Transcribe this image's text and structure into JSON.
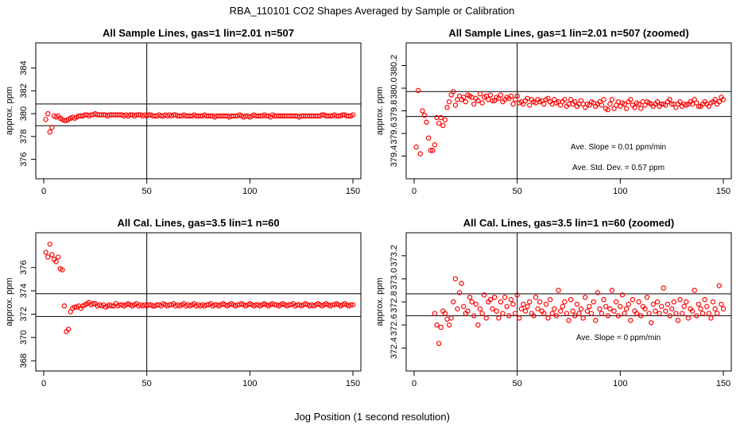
{
  "figure": {
    "title": "RBA_110101  CO2 Shapes Averaged by Sample or Calibration",
    "xlabel": "Jog Position (1 second resolution)"
  },
  "colors": {
    "points": "#ff0000",
    "axes": "#000000",
    "background": "#ffffff"
  },
  "chart_data": [
    {
      "type": "scatter",
      "title": "All Sample Lines, gas=1 lin=2.01 n=507",
      "ylabel": "approx. ppm",
      "xlim": [
        0,
        150
      ],
      "ylim": [
        375,
        385.5
      ],
      "xticks": [
        0,
        50,
        100,
        150
      ],
      "yticks": [
        376,
        378,
        380,
        382,
        384
      ],
      "vline": 50,
      "hlines": [
        378.95,
        380.85
      ],
      "annotations": [],
      "x": [
        1,
        2,
        3,
        4,
        5,
        6,
        7,
        8,
        9,
        10,
        11,
        12,
        13,
        14,
        15,
        16,
        17,
        18,
        19,
        20,
        21,
        22,
        23,
        24,
        25,
        26,
        27,
        28,
        29,
        30,
        31,
        32,
        33,
        34,
        35,
        36,
        37,
        38,
        39,
        40,
        41,
        42,
        43,
        44,
        45,
        46,
        47,
        48,
        49,
        50,
        51,
        52,
        53,
        54,
        55,
        56,
        57,
        58,
        59,
        60,
        61,
        62,
        63,
        64,
        65,
        66,
        67,
        68,
        69,
        70,
        71,
        72,
        73,
        74,
        75,
        76,
        77,
        78,
        79,
        80,
        81,
        82,
        83,
        84,
        85,
        86,
        87,
        88,
        89,
        90,
        91,
        92,
        93,
        94,
        95,
        96,
        97,
        98,
        99,
        100,
        101,
        102,
        103,
        104,
        105,
        106,
        107,
        108,
        109,
        110,
        111,
        112,
        113,
        114,
        115,
        116,
        117,
        118,
        119,
        120,
        121,
        122,
        123,
        124,
        125,
        126,
        127,
        128,
        129,
        130,
        131,
        132,
        133,
        134,
        135,
        136,
        137,
        138,
        139,
        140,
        141,
        142,
        143,
        144,
        145,
        146,
        147,
        148,
        149,
        150
      ],
      "y": [
        379.5,
        380.0,
        378.4,
        378.8,
        379.8,
        379.7,
        379.8,
        379.6,
        379.5,
        379.4,
        379.4,
        379.5,
        379.6,
        379.7,
        379.6,
        379.7,
        379.8,
        379.8,
        379.8,
        379.9,
        379.9,
        379.8,
        379.9,
        379.9,
        380.0,
        379.9,
        379.9,
        379.9,
        379.9,
        379.9,
        379.8,
        379.9,
        379.9,
        379.9,
        379.9,
        379.9,
        379.9,
        379.9,
        379.8,
        379.9,
        379.8,
        379.9,
        379.9,
        379.8,
        379.9,
        379.9,
        379.9,
        379.8,
        379.9,
        379.8,
        379.9,
        379.9,
        379.8,
        379.8,
        379.8,
        379.9,
        379.8,
        379.8,
        379.9,
        379.8,
        379.9,
        379.8,
        379.9,
        379.9,
        379.8,
        379.8,
        379.8,
        379.9,
        379.8,
        379.8,
        379.8,
        379.8,
        379.9,
        379.8,
        379.8,
        379.8,
        379.8,
        379.9,
        379.8,
        379.8,
        379.8,
        379.8,
        379.7,
        379.8,
        379.8,
        379.8,
        379.8,
        379.8,
        379.8,
        379.7,
        379.8,
        379.8,
        379.8,
        379.8,
        379.9,
        379.8,
        379.7,
        379.8,
        379.8,
        379.7,
        379.8,
        379.9,
        379.8,
        379.8,
        379.8,
        379.8,
        379.9,
        379.8,
        379.8,
        379.7,
        379.9,
        379.8,
        379.8,
        379.8,
        379.8,
        379.8,
        379.8,
        379.8,
        379.8,
        379.8,
        379.8,
        379.8,
        379.8,
        379.7,
        379.8,
        379.8,
        379.8,
        379.8,
        379.8,
        379.8,
        379.8,
        379.8,
        379.8,
        379.8,
        379.9,
        379.9,
        379.8,
        379.8,
        379.8,
        379.8,
        379.9,
        379.8,
        379.8,
        379.8,
        379.9,
        379.9,
        379.8,
        379.8,
        379.8,
        379.9
      ]
    },
    {
      "type": "scatter",
      "title": "All Sample Lines, gas=1 lin=2.01 n=507 (zoomed)",
      "ylabel": "approx. ppm",
      "xlim": [
        0,
        150
      ],
      "ylim": [
        379.27,
        380.33
      ],
      "xticks": [
        0,
        50,
        100,
        150
      ],
      "yticks": [
        379.4,
        379.6,
        379.8,
        380.0,
        380.2
      ],
      "vline": 50,
      "hlines": [
        379.75,
        379.97
      ],
      "annotations": [
        "Ave. Slope =  0.01  ppm/min",
        "Ave. Std. Dev. =  0.57  ppm"
      ],
      "x": [
        1,
        2,
        3,
        4,
        5,
        6,
        7,
        8,
        9,
        10,
        11,
        12,
        13,
        14,
        15,
        16,
        17,
        18,
        19,
        20,
        21,
        22,
        23,
        24,
        25,
        26,
        27,
        28,
        29,
        30,
        31,
        32,
        33,
        34,
        35,
        36,
        37,
        38,
        39,
        40,
        41,
        42,
        43,
        44,
        45,
        46,
        47,
        48,
        49,
        50,
        51,
        52,
        53,
        54,
        55,
        56,
        57,
        58,
        59,
        60,
        61,
        62,
        63,
        64,
        65,
        66,
        67,
        68,
        69,
        70,
        71,
        72,
        73,
        74,
        75,
        76,
        77,
        78,
        79,
        80,
        81,
        82,
        83,
        84,
        85,
        86,
        87,
        88,
        89,
        90,
        91,
        92,
        93,
        94,
        95,
        96,
        97,
        98,
        99,
        100,
        101,
        102,
        103,
        104,
        105,
        106,
        107,
        108,
        109,
        110,
        111,
        112,
        113,
        114,
        115,
        116,
        117,
        118,
        119,
        120,
        121,
        122,
        123,
        124,
        125,
        126,
        127,
        128,
        129,
        130,
        131,
        132,
        133,
        134,
        135,
        136,
        137,
        138,
        139,
        140,
        141,
        142,
        143,
        144,
        145,
        146,
        147,
        148,
        149,
        150
      ],
      "y": [
        379.48,
        379.98,
        379.42,
        379.8,
        379.76,
        379.7,
        379.56,
        379.45,
        379.45,
        379.5,
        379.74,
        379.69,
        379.74,
        379.67,
        379.72,
        379.83,
        379.88,
        379.94,
        379.97,
        379.85,
        379.9,
        379.93,
        379.9,
        379.92,
        379.88,
        379.94,
        379.93,
        379.92,
        379.86,
        379.91,
        379.89,
        379.95,
        379.87,
        379.92,
        379.93,
        379.9,
        379.94,
        379.89,
        379.89,
        379.92,
        379.91,
        379.94,
        379.88,
        379.9,
        379.92,
        379.91,
        379.93,
        379.86,
        379.9,
        379.93,
        379.87,
        379.88,
        379.86,
        379.89,
        379.91,
        379.85,
        379.9,
        379.88,
        379.87,
        379.9,
        379.88,
        379.89,
        379.86,
        379.9,
        379.91,
        379.88,
        379.86,
        379.9,
        379.87,
        379.88,
        379.85,
        379.88,
        379.9,
        379.84,
        379.86,
        379.9,
        379.86,
        379.88,
        379.84,
        379.86,
        379.89,
        379.86,
        379.83,
        379.86,
        379.85,
        379.88,
        379.87,
        379.84,
        379.86,
        379.88,
        379.85,
        379.9,
        379.82,
        379.81,
        379.86,
        379.9,
        379.82,
        379.85,
        379.88,
        379.84,
        379.87,
        379.86,
        379.82,
        379.88,
        379.9,
        379.85,
        379.83,
        379.87,
        379.86,
        379.82,
        379.88,
        379.85,
        379.88,
        379.87,
        379.86,
        379.84,
        379.86,
        379.88,
        379.84,
        379.86,
        379.86,
        379.85,
        379.88,
        379.9,
        379.86,
        379.86,
        379.83,
        379.86,
        379.88,
        379.84,
        379.86,
        379.85,
        379.86,
        379.88,
        379.86,
        379.9,
        379.87,
        379.84,
        379.84,
        379.86,
        379.88,
        379.86,
        379.84,
        379.87,
        379.88,
        379.9,
        379.86,
        379.88,
        379.92,
        379.9
      ]
    },
    {
      "type": "scatter",
      "title": "All Cal. Lines, gas=3.5 lin=1 n=60",
      "ylabel": "approx. ppm",
      "xlim": [
        0,
        150
      ],
      "ylim": [
        367.8,
        378.3
      ],
      "xticks": [
        0,
        50,
        100,
        150
      ],
      "yticks": [
        368,
        370,
        372,
        374,
        376
      ],
      "vline": 50,
      "hlines": [
        371.8,
        373.75
      ],
      "annotations": [],
      "x": [
        1,
        2,
        3,
        4,
        5,
        6,
        7,
        8,
        9,
        10,
        11,
        12,
        13,
        14,
        15,
        16,
        17,
        18,
        19,
        20,
        21,
        22,
        23,
        24,
        25,
        26,
        27,
        28,
        29,
        30,
        31,
        32,
        33,
        34,
        35,
        36,
        37,
        38,
        39,
        40,
        41,
        42,
        43,
        44,
        45,
        46,
        47,
        48,
        49,
        50,
        51,
        52,
        53,
        54,
        55,
        56,
        57,
        58,
        59,
        60,
        61,
        62,
        63,
        64,
        65,
        66,
        67,
        68,
        69,
        70,
        71,
        72,
        73,
        74,
        75,
        76,
        77,
        78,
        79,
        80,
        81,
        82,
        83,
        84,
        85,
        86,
        87,
        88,
        89,
        90,
        91,
        92,
        93,
        94,
        95,
        96,
        97,
        98,
        99,
        100,
        101,
        102,
        103,
        104,
        105,
        106,
        107,
        108,
        109,
        110,
        111,
        112,
        113,
        114,
        115,
        116,
        117,
        118,
        119,
        120,
        121,
        122,
        123,
        124,
        125,
        126,
        127,
        128,
        129,
        130,
        131,
        132,
        133,
        134,
        135,
        136,
        137,
        138,
        139,
        140,
        141,
        142,
        143,
        144,
        145,
        146,
        147,
        148,
        149,
        150
      ],
      "y": [
        377.3,
        376.9,
        378.0,
        377.1,
        376.7,
        376.5,
        376.9,
        375.9,
        375.8,
        372.7,
        370.5,
        370.7,
        372.2,
        372.5,
        372.6,
        372.6,
        372.7,
        372.5,
        372.7,
        372.8,
        372.9,
        373.0,
        372.8,
        372.9,
        372.9,
        372.7,
        372.8,
        372.7,
        372.8,
        372.6,
        372.7,
        372.8,
        372.7,
        372.7,
        372.9,
        372.7,
        372.8,
        372.8,
        372.7,
        372.8,
        372.9,
        372.8,
        372.7,
        372.8,
        372.9,
        372.7,
        372.8,
        372.7,
        372.8,
        372.7,
        372.8,
        372.8,
        372.7,
        372.7,
        372.8,
        372.8,
        372.7,
        372.9,
        372.8,
        372.7,
        372.8,
        372.8,
        372.9,
        372.7,
        372.8,
        372.7,
        372.8,
        372.9,
        372.7,
        372.8,
        372.7,
        372.8,
        372.9,
        372.7,
        372.8,
        372.7,
        372.8,
        372.7,
        372.8,
        372.8,
        372.9,
        372.7,
        372.8,
        372.8,
        372.7,
        372.8,
        372.9,
        372.8,
        372.7,
        372.8,
        372.9,
        372.8,
        372.7,
        372.8,
        372.8,
        372.9,
        372.8,
        372.7,
        372.8,
        372.9,
        372.8,
        372.7,
        372.8,
        372.8,
        372.7,
        372.8,
        372.9,
        372.8,
        372.7,
        372.8,
        372.9,
        372.8,
        372.8,
        372.7,
        372.8,
        372.9,
        372.8,
        372.7,
        372.8,
        372.8,
        372.9,
        372.7,
        372.8,
        372.8,
        372.7,
        372.8,
        372.9,
        372.8,
        372.7,
        372.8,
        372.7,
        372.8,
        372.9,
        372.8,
        372.7,
        372.8,
        372.9,
        372.8,
        372.7,
        372.8,
        372.8,
        372.9,
        372.8,
        372.7,
        372.8,
        372.9,
        372.8,
        372.7,
        372.8,
        372.8
      ]
    },
    {
      "type": "scatter",
      "title": "All Cal. Lines, gas=3.5 lin=1 n=60 (zoomed)",
      "ylabel": "approx. ppm",
      "xlim": [
        0,
        150
      ],
      "ylim": [
        372.27,
        373.33
      ],
      "xticks": [
        0,
        50,
        100,
        150
      ],
      "yticks": [
        372.4,
        372.6,
        372.8,
        373.0,
        373.2
      ],
      "vline": 50,
      "hlines": [
        372.68,
        372.87
      ],
      "annotations": [
        "Ave. Slope =  0  ppm/min"
      ],
      "x": [
        10,
        11,
        12,
        13,
        14,
        15,
        16,
        17,
        18,
        19,
        20,
        21,
        22,
        23,
        24,
        25,
        26,
        27,
        28,
        29,
        30,
        31,
        32,
        33,
        34,
        35,
        36,
        37,
        38,
        39,
        40,
        41,
        42,
        43,
        44,
        45,
        46,
        47,
        48,
        49,
        50,
        51,
        52,
        53,
        54,
        55,
        56,
        57,
        58,
        59,
        60,
        61,
        62,
        63,
        64,
        65,
        66,
        67,
        68,
        69,
        70,
        71,
        72,
        73,
        74,
        75,
        76,
        77,
        78,
        79,
        80,
        81,
        82,
        83,
        84,
        85,
        86,
        87,
        88,
        89,
        90,
        91,
        92,
        93,
        94,
        95,
        96,
        97,
        98,
        99,
        100,
        101,
        102,
        103,
        104,
        105,
        106,
        107,
        108,
        109,
        110,
        111,
        112,
        113,
        114,
        115,
        116,
        117,
        118,
        119,
        120,
        121,
        122,
        123,
        124,
        125,
        126,
        127,
        128,
        129,
        130,
        131,
        132,
        133,
        134,
        135,
        136,
        137,
        138,
        139,
        140,
        141,
        142,
        143,
        144,
        145,
        146,
        147,
        148,
        149,
        150
      ],
      "y": [
        372.7,
        372.6,
        372.44,
        372.58,
        372.72,
        372.7,
        372.65,
        372.6,
        372.66,
        372.8,
        373.0,
        372.74,
        372.88,
        372.96,
        372.76,
        372.7,
        372.72,
        372.84,
        372.8,
        372.68,
        372.78,
        372.6,
        372.74,
        372.7,
        372.86,
        372.66,
        372.8,
        372.82,
        372.74,
        372.84,
        372.72,
        372.66,
        372.8,
        372.7,
        372.84,
        372.76,
        372.68,
        372.82,
        372.78,
        372.7,
        372.86,
        372.66,
        372.74,
        372.78,
        372.72,
        372.76,
        372.8,
        372.7,
        372.68,
        372.84,
        372.74,
        372.8,
        372.72,
        372.7,
        372.78,
        372.66,
        372.82,
        372.7,
        372.74,
        372.68,
        372.9,
        372.72,
        372.76,
        372.8,
        372.7,
        372.64,
        372.82,
        372.72,
        372.68,
        372.78,
        372.7,
        372.74,
        372.66,
        372.84,
        372.72,
        372.76,
        372.7,
        372.8,
        372.64,
        372.88,
        372.74,
        372.7,
        372.82,
        372.76,
        372.68,
        372.74,
        372.9,
        372.72,
        372.8,
        372.68,
        372.76,
        372.86,
        372.7,
        372.74,
        372.78,
        372.64,
        372.82,
        372.72,
        372.7,
        372.8,
        372.68,
        372.76,
        372.74,
        372.84,
        372.7,
        372.62,
        372.78,
        372.72,
        372.8,
        372.7,
        372.76,
        372.92,
        372.72,
        372.78,
        372.68,
        372.74,
        372.8,
        372.7,
        372.64,
        372.82,
        372.7,
        372.76,
        372.8,
        372.66,
        372.74,
        372.72,
        372.9,
        372.68,
        372.78,
        372.74,
        372.7,
        372.82,
        372.76,
        372.7,
        372.66,
        372.8,
        372.74,
        372.7,
        372.94,
        372.78,
        372.74
      ]
    }
  ]
}
